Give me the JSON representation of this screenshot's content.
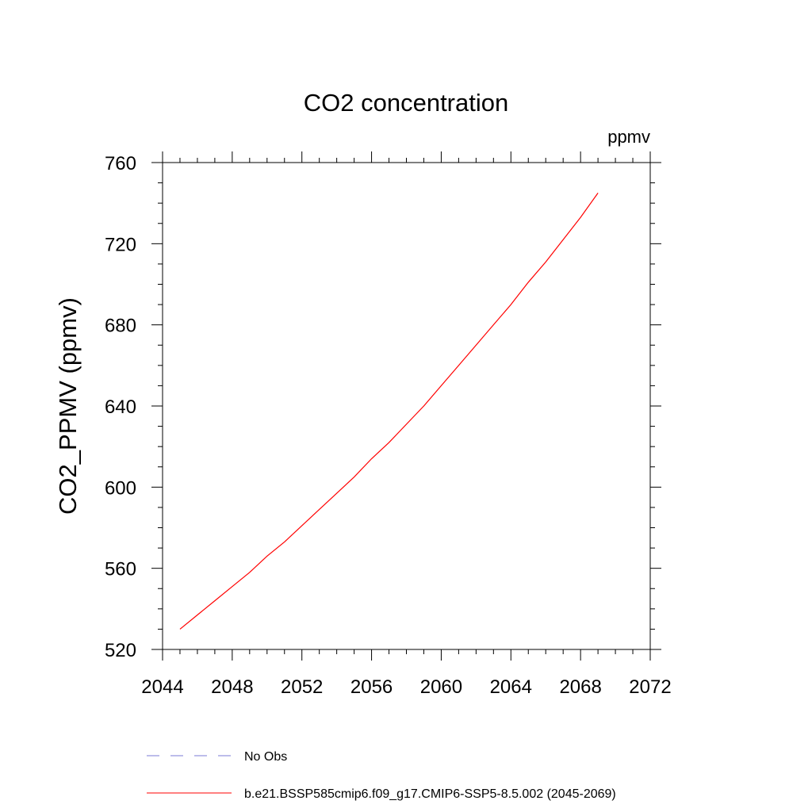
{
  "chart_data": {
    "type": "line",
    "title": "CO2 concentration",
    "units_label": "ppmv",
    "xlabel": "",
    "ylabel": "CO2_PPMV  (ppmv)",
    "xlim": [
      2044,
      2072
    ],
    "ylim": [
      520,
      760
    ],
    "xticks": [
      2044,
      2048,
      2052,
      2056,
      2060,
      2064,
      2068,
      2072
    ],
    "yticks": [
      520,
      560,
      600,
      640,
      680,
      720,
      760
    ],
    "grid": false,
    "legend_position": "bottom",
    "series": [
      {
        "name": "b.e21.BSSP585cmip6.f09_g17.CMIP6-SSP5-8.5.002 (2045-2069)",
        "color": "#ff0000",
        "dash": "solid",
        "x": [
          2045,
          2046,
          2047,
          2048,
          2049,
          2050,
          2051,
          2052,
          2053,
          2054,
          2055,
          2056,
          2057,
          2058,
          2059,
          2060,
          2061,
          2062,
          2063,
          2064,
          2065,
          2066,
          2067,
          2068,
          2069
        ],
        "y": [
          530,
          537,
          544,
          551,
          558,
          566,
          573,
          581,
          589,
          597,
          605,
          614,
          622,
          631,
          640,
          650,
          660,
          670,
          680,
          690,
          701,
          711,
          722,
          733,
          745
        ]
      }
    ],
    "legend": [
      {
        "label": "No Obs",
        "color": "#7b7bd6",
        "dash": "dashed"
      },
      {
        "label": "b.e21.BSSP585cmip6.f09_g17.CMIP6-SSP5-8.5.002 (2045-2069)",
        "color": "#ff0000",
        "dash": "solid"
      }
    ]
  }
}
